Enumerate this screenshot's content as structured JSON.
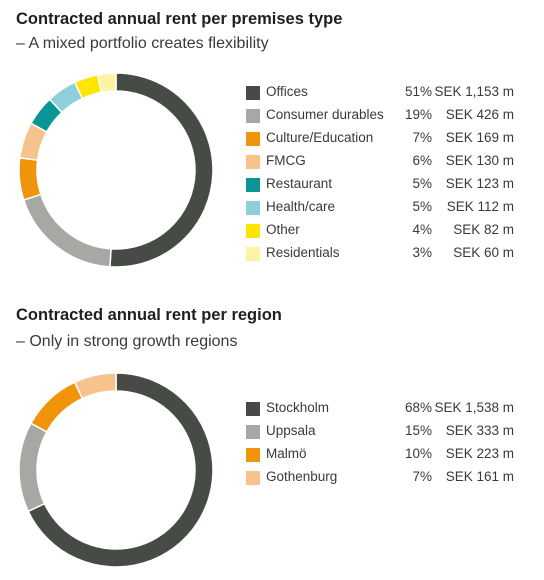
{
  "chart_data": [
    {
      "type": "pie",
      "title": "Contracted annual rent per premises type",
      "subtitle": "– A mixed portfolio creates flexibility",
      "legend_position": "right",
      "categories": [
        "Offices",
        "Consumer durables",
        "Culture/Education",
        "FMCG",
        "Restaurant",
        "Health/care",
        "Other",
        "Residentials"
      ],
      "values": [
        51,
        19,
        7,
        6,
        5,
        5,
        4,
        3
      ],
      "percent_labels": [
        "51%",
        "19%",
        "7%",
        "6%",
        "5%",
        "5%",
        "4%",
        "3%"
      ],
      "amount_labels": [
        "SEK 1,153 m",
        "SEK 426 m",
        "SEK 169 m",
        "SEK 130 m",
        "SEK 123 m",
        "SEK 112 m",
        "SEK 82 m",
        "SEK 60 m"
      ],
      "colors": [
        "#474b45",
        "#a5a8a3",
        "#f0940c",
        "#f8c28d",
        "#0b9596",
        "#8fcfd9",
        "#ffe600",
        "#fdf3a5"
      ]
    },
    {
      "type": "pie",
      "title": "Contracted annual rent per region",
      "subtitle": "– Only in strong growth regions",
      "legend_position": "right",
      "categories": [
        "Stockholm",
        "Uppsala",
        "Malmö",
        "Gothenburg"
      ],
      "values": [
        68,
        15,
        10,
        7
      ],
      "percent_labels": [
        "68%",
        "15%",
        "10%",
        "7%"
      ],
      "amount_labels": [
        "SEK 1,538 m",
        "SEK 333 m",
        "SEK 223 m",
        "SEK 161 m"
      ],
      "colors": [
        "#474b45",
        "#a5a8a3",
        "#f0940c",
        "#f8c28d"
      ]
    }
  ]
}
